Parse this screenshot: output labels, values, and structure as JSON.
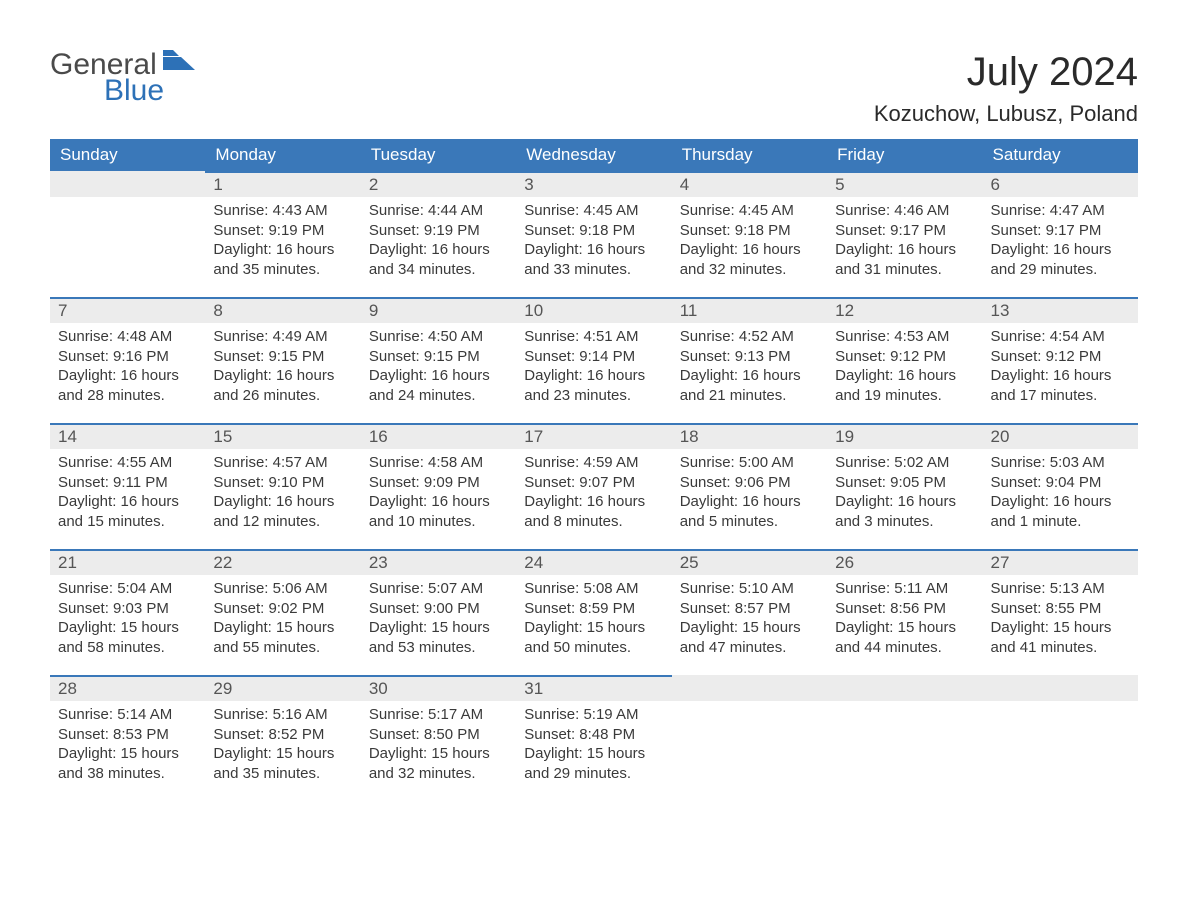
{
  "logo": {
    "text1": "General",
    "text2": "Blue",
    "icon_color": "#2d71b7"
  },
  "title": "July 2024",
  "location": "Kozuchow, Lubusz, Poland",
  "header_bg": "#3a78b9",
  "daybar_bg": "#ececec",
  "daybar_border": "#3a78b9",
  "text_color": "#3a3a3a",
  "weekday_fontsize": 17,
  "body_fontsize": 15,
  "weekdays": [
    "Sunday",
    "Monday",
    "Tuesday",
    "Wednesday",
    "Thursday",
    "Friday",
    "Saturday"
  ],
  "weeks": [
    [
      null,
      {
        "n": "1",
        "sr": "Sunrise: 4:43 AM",
        "ss": "Sunset: 9:19 PM",
        "d1": "Daylight: 16 hours",
        "d2": "and 35 minutes."
      },
      {
        "n": "2",
        "sr": "Sunrise: 4:44 AM",
        "ss": "Sunset: 9:19 PM",
        "d1": "Daylight: 16 hours",
        "d2": "and 34 minutes."
      },
      {
        "n": "3",
        "sr": "Sunrise: 4:45 AM",
        "ss": "Sunset: 9:18 PM",
        "d1": "Daylight: 16 hours",
        "d2": "and 33 minutes."
      },
      {
        "n": "4",
        "sr": "Sunrise: 4:45 AM",
        "ss": "Sunset: 9:18 PM",
        "d1": "Daylight: 16 hours",
        "d2": "and 32 minutes."
      },
      {
        "n": "5",
        "sr": "Sunrise: 4:46 AM",
        "ss": "Sunset: 9:17 PM",
        "d1": "Daylight: 16 hours",
        "d2": "and 31 minutes."
      },
      {
        "n": "6",
        "sr": "Sunrise: 4:47 AM",
        "ss": "Sunset: 9:17 PM",
        "d1": "Daylight: 16 hours",
        "d2": "and 29 minutes."
      }
    ],
    [
      {
        "n": "7",
        "sr": "Sunrise: 4:48 AM",
        "ss": "Sunset: 9:16 PM",
        "d1": "Daylight: 16 hours",
        "d2": "and 28 minutes."
      },
      {
        "n": "8",
        "sr": "Sunrise: 4:49 AM",
        "ss": "Sunset: 9:15 PM",
        "d1": "Daylight: 16 hours",
        "d2": "and 26 minutes."
      },
      {
        "n": "9",
        "sr": "Sunrise: 4:50 AM",
        "ss": "Sunset: 9:15 PM",
        "d1": "Daylight: 16 hours",
        "d2": "and 24 minutes."
      },
      {
        "n": "10",
        "sr": "Sunrise: 4:51 AM",
        "ss": "Sunset: 9:14 PM",
        "d1": "Daylight: 16 hours",
        "d2": "and 23 minutes."
      },
      {
        "n": "11",
        "sr": "Sunrise: 4:52 AM",
        "ss": "Sunset: 9:13 PM",
        "d1": "Daylight: 16 hours",
        "d2": "and 21 minutes."
      },
      {
        "n": "12",
        "sr": "Sunrise: 4:53 AM",
        "ss": "Sunset: 9:12 PM",
        "d1": "Daylight: 16 hours",
        "d2": "and 19 minutes."
      },
      {
        "n": "13",
        "sr": "Sunrise: 4:54 AM",
        "ss": "Sunset: 9:12 PM",
        "d1": "Daylight: 16 hours",
        "d2": "and 17 minutes."
      }
    ],
    [
      {
        "n": "14",
        "sr": "Sunrise: 4:55 AM",
        "ss": "Sunset: 9:11 PM",
        "d1": "Daylight: 16 hours",
        "d2": "and 15 minutes."
      },
      {
        "n": "15",
        "sr": "Sunrise: 4:57 AM",
        "ss": "Sunset: 9:10 PM",
        "d1": "Daylight: 16 hours",
        "d2": "and 12 minutes."
      },
      {
        "n": "16",
        "sr": "Sunrise: 4:58 AM",
        "ss": "Sunset: 9:09 PM",
        "d1": "Daylight: 16 hours",
        "d2": "and 10 minutes."
      },
      {
        "n": "17",
        "sr": "Sunrise: 4:59 AM",
        "ss": "Sunset: 9:07 PM",
        "d1": "Daylight: 16 hours",
        "d2": "and 8 minutes."
      },
      {
        "n": "18",
        "sr": "Sunrise: 5:00 AM",
        "ss": "Sunset: 9:06 PM",
        "d1": "Daylight: 16 hours",
        "d2": "and 5 minutes."
      },
      {
        "n": "19",
        "sr": "Sunrise: 5:02 AM",
        "ss": "Sunset: 9:05 PM",
        "d1": "Daylight: 16 hours",
        "d2": "and 3 minutes."
      },
      {
        "n": "20",
        "sr": "Sunrise: 5:03 AM",
        "ss": "Sunset: 9:04 PM",
        "d1": "Daylight: 16 hours",
        "d2": "and 1 minute."
      }
    ],
    [
      {
        "n": "21",
        "sr": "Sunrise: 5:04 AM",
        "ss": "Sunset: 9:03 PM",
        "d1": "Daylight: 15 hours",
        "d2": "and 58 minutes."
      },
      {
        "n": "22",
        "sr": "Sunrise: 5:06 AM",
        "ss": "Sunset: 9:02 PM",
        "d1": "Daylight: 15 hours",
        "d2": "and 55 minutes."
      },
      {
        "n": "23",
        "sr": "Sunrise: 5:07 AM",
        "ss": "Sunset: 9:00 PM",
        "d1": "Daylight: 15 hours",
        "d2": "and 53 minutes."
      },
      {
        "n": "24",
        "sr": "Sunrise: 5:08 AM",
        "ss": "Sunset: 8:59 PM",
        "d1": "Daylight: 15 hours",
        "d2": "and 50 minutes."
      },
      {
        "n": "25",
        "sr": "Sunrise: 5:10 AM",
        "ss": "Sunset: 8:57 PM",
        "d1": "Daylight: 15 hours",
        "d2": "and 47 minutes."
      },
      {
        "n": "26",
        "sr": "Sunrise: 5:11 AM",
        "ss": "Sunset: 8:56 PM",
        "d1": "Daylight: 15 hours",
        "d2": "and 44 minutes."
      },
      {
        "n": "27",
        "sr": "Sunrise: 5:13 AM",
        "ss": "Sunset: 8:55 PM",
        "d1": "Daylight: 15 hours",
        "d2": "and 41 minutes."
      }
    ],
    [
      {
        "n": "28",
        "sr": "Sunrise: 5:14 AM",
        "ss": "Sunset: 8:53 PM",
        "d1": "Daylight: 15 hours",
        "d2": "and 38 minutes."
      },
      {
        "n": "29",
        "sr": "Sunrise: 5:16 AM",
        "ss": "Sunset: 8:52 PM",
        "d1": "Daylight: 15 hours",
        "d2": "and 35 minutes."
      },
      {
        "n": "30",
        "sr": "Sunrise: 5:17 AM",
        "ss": "Sunset: 8:50 PM",
        "d1": "Daylight: 15 hours",
        "d2": "and 32 minutes."
      },
      {
        "n": "31",
        "sr": "Sunrise: 5:19 AM",
        "ss": "Sunset: 8:48 PM",
        "d1": "Daylight: 15 hours",
        "d2": "and 29 minutes."
      },
      null,
      null,
      null
    ]
  ]
}
